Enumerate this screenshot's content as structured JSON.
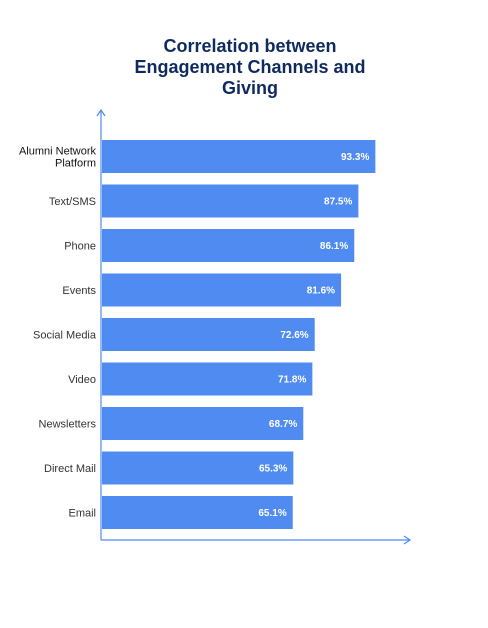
{
  "chart_data": {
    "type": "bar",
    "orientation": "horizontal",
    "title": "Correlation between Engagement Channels and Giving",
    "xlabel": "",
    "ylabel": "",
    "categories": [
      "Alumni Network Platform",
      "Text/SMS",
      "Phone",
      "Events",
      "Social Media",
      "Video",
      "Newsletters",
      "Direct Mail",
      "Email"
    ],
    "values": [
      93.3,
      87.5,
      86.1,
      81.6,
      72.6,
      71.8,
      68.7,
      65.3,
      65.1
    ],
    "value_labels": [
      "93.3%",
      "87.5%",
      "86.1%",
      "81.6%",
      "72.6%",
      "71.8%",
      "68.7%",
      "65.3%",
      "65.1%"
    ],
    "xlim": [
      0,
      100
    ],
    "grid": false,
    "legend": "none",
    "colors": {
      "bar": "#4f8bf0",
      "axis": "#4f8bf0",
      "title": "#0f2a5f"
    }
  }
}
